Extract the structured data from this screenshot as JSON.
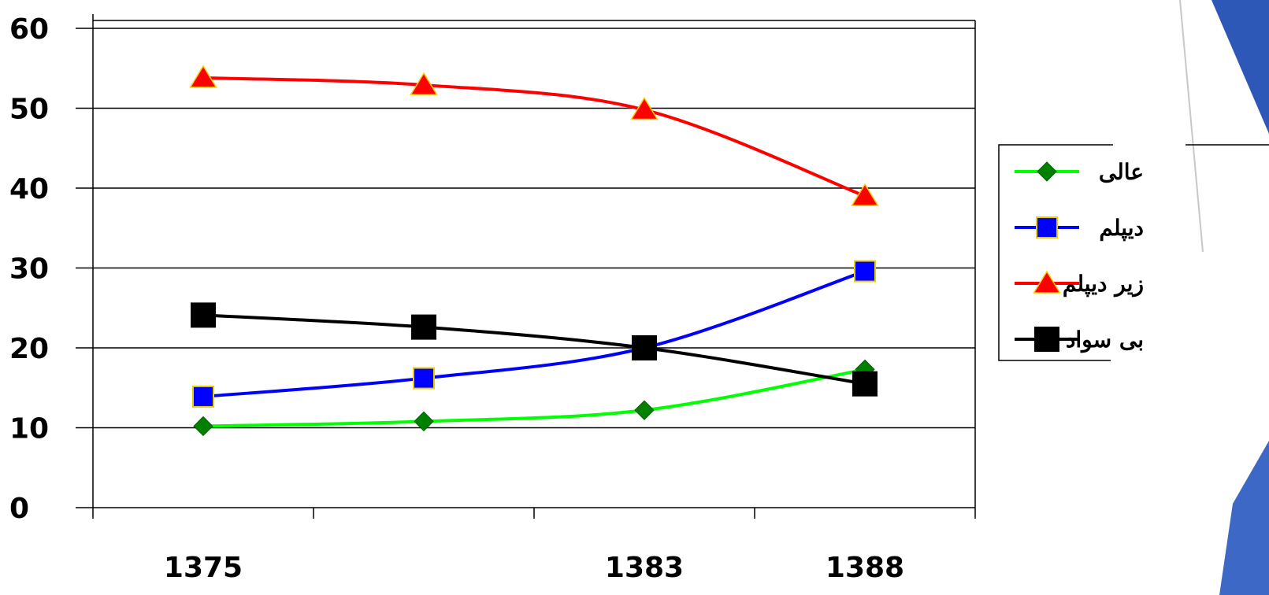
{
  "chart_data": {
    "type": "line",
    "xlabel": "",
    "ylabel": "",
    "ylim": [
      0,
      60
    ],
    "y_ticks": [
      0,
      10,
      20,
      30,
      40,
      50,
      60
    ],
    "x_tick_labels": [
      "1375",
      "",
      "1383",
      "1388"
    ],
    "grid": true,
    "legend_position": "right",
    "series": [
      {
        "name": "عالی",
        "color": "#00ff00",
        "marker": "diamond",
        "marker_color": "#008000",
        "values": [
          10.2,
          10.8,
          12.2,
          17.3
        ]
      },
      {
        "name": "دیپلم",
        "color": "#0000ff",
        "marker": "square",
        "marker_color": "#0000ff",
        "values": [
          13.9,
          16.2,
          20.0,
          29.6
        ]
      },
      {
        "name": "زیر دیپلم",
        "color": "#ff0000",
        "marker": "triangle",
        "marker_color": "#ff0000",
        "values": [
          53.8,
          52.9,
          49.8,
          39.0
        ]
      },
      {
        "name": "بی سواد",
        "color": "#000000",
        "marker": "square",
        "marker_color": "#000000",
        "values": [
          24.1,
          22.6,
          20.0,
          15.5
        ]
      }
    ]
  }
}
